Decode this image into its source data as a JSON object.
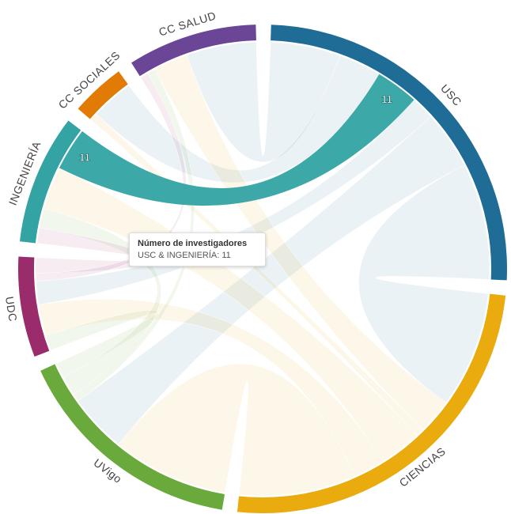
{
  "chart_data": {
    "type": "chord",
    "groups": [
      {
        "name": "USC",
        "color": "#1f6d96"
      },
      {
        "name": "CIENCIAS",
        "color": "#e9ab0d"
      },
      {
        "name": "UVigo",
        "color": "#6aaa3c"
      },
      {
        "name": "UDC",
        "color": "#9b2c6b"
      },
      {
        "name": "INGENIERÍA",
        "color": "#33a3a3"
      },
      {
        "name": "CC SOCIALES",
        "color": "#e27b05"
      },
      {
        "name": "CC SALUD",
        "color": "#6b4596"
      }
    ],
    "chords": [
      {
        "source": 0,
        "target": 4,
        "value": 11
      },
      {
        "source": 0,
        "target": 1,
        "value": 30
      },
      {
        "source": 0,
        "target": 2,
        "value": 15
      },
      {
        "source": 0,
        "target": 3,
        "value": 6
      },
      {
        "source": 0,
        "target": 6,
        "value": 18
      },
      {
        "source": 0,
        "target": 5,
        "value": 11
      },
      {
        "source": 1,
        "target": 2,
        "value": 30
      },
      {
        "source": 1,
        "target": 3,
        "value": 8
      },
      {
        "source": 1,
        "target": 4,
        "value": 11
      },
      {
        "source": 1,
        "target": 6,
        "value": 9
      },
      {
        "source": 1,
        "target": 5,
        "value": 2
      },
      {
        "source": 2,
        "target": 3,
        "value": 4
      },
      {
        "source": 2,
        "target": 4,
        "value": 5
      },
      {
        "source": 2,
        "target": 6,
        "value": 2
      },
      {
        "source": 3,
        "target": 4,
        "value": 4
      },
      {
        "source": 3,
        "target": 6,
        "value": 2
      }
    ],
    "highlight": 0,
    "tooltip": {
      "title": "Número de investigadores",
      "text": "USC & INGENIERÍA: 11"
    }
  }
}
